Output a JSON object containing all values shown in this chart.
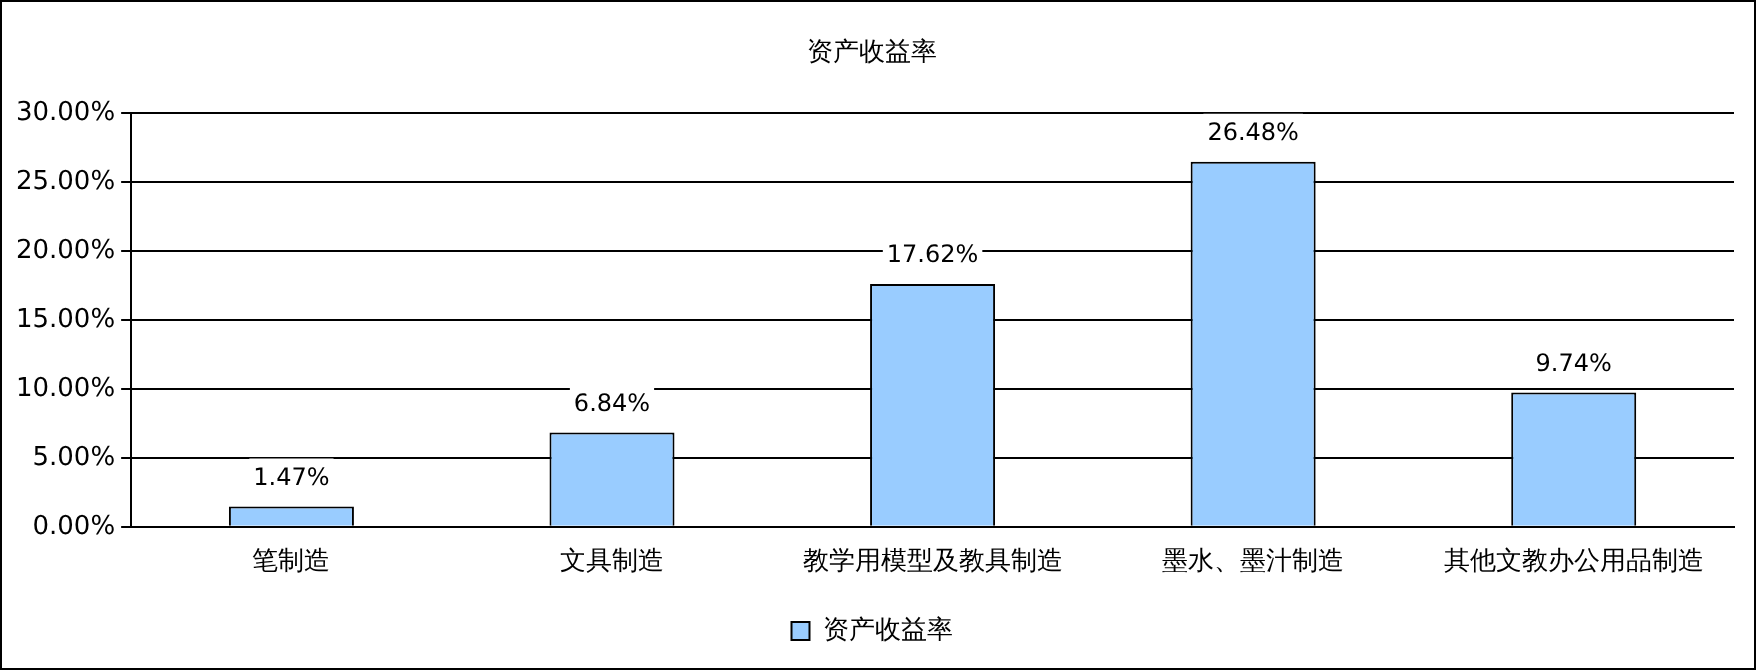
{
  "chart_data": {
    "type": "bar",
    "title": "资产收益率",
    "categories": [
      "笔制造",
      "文具制造",
      "教学用模型及教具制造",
      "墨水、墨汁制造",
      "其他文教办公用品制造"
    ],
    "series": [
      {
        "name": "资产收益率",
        "color": "#99ccff",
        "values": [
          1.47,
          6.84,
          17.62,
          26.48,
          9.74
        ],
        "value_labels": [
          "1.47%",
          "6.84%",
          "17.62%",
          "26.48%",
          "9.74%"
        ]
      }
    ],
    "ylim": [
      0,
      30
    ],
    "yticks": [
      {
        "value": 0,
        "label": "0.00%"
      },
      {
        "value": 5,
        "label": "5.00%"
      },
      {
        "value": 10,
        "label": "10.00%"
      },
      {
        "value": 15,
        "label": "15.00%"
      },
      {
        "value": 20,
        "label": "20.00%"
      },
      {
        "value": 25,
        "label": "25.00%"
      },
      {
        "value": 30,
        "label": "30.00%"
      }
    ],
    "grid": "y",
    "legend": "bottom"
  }
}
